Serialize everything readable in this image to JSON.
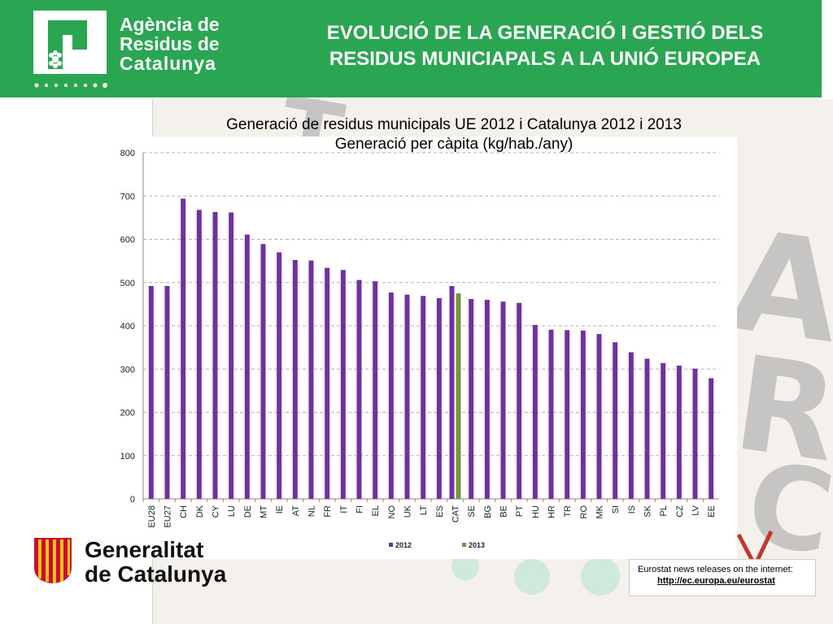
{
  "header": {
    "org_line1": "Agència de",
    "org_line2": "Residus de",
    "org_line3": "Catalunya",
    "title_line1": "EVOLUCIÓ DE LA GENERACIÓ I GESTIÓ DELS",
    "title_line2": "RESIDUS MUNICIAPALS A LA UNIÓ EUROPEA"
  },
  "footer": {
    "gencat_line1": "Generalitat",
    "gencat_line2": "de Catalunya",
    "eurostat_line1": "Eurostat news releases on the internet:",
    "eurostat_url": "http://ec.europa.eu/eurostat"
  },
  "colors": {
    "header_green": "#2aa552",
    "bar_2012": "#7030a0",
    "bar_2013": "#77933c",
    "grid": "#b3b3b3"
  },
  "chart_data": {
    "type": "bar",
    "title": "Generació de residus municipals UE 2012 i Catalunya 2012 i 2013",
    "subtitle": "Generació per càpita (kg/hab./any)",
    "xlabel": "",
    "ylabel": "",
    "ylim": [
      0,
      800
    ],
    "yticks": [
      0,
      100,
      200,
      300,
      400,
      500,
      600,
      700,
      800
    ],
    "grid": true,
    "legend_position": "bottom",
    "categories": [
      "EU28",
      "EU27",
      "CH",
      "DK",
      "CY",
      "LU",
      "DE",
      "MT",
      "IE",
      "AT",
      "NL",
      "FR",
      "IT",
      "FI",
      "EL",
      "NO",
      "UK",
      "LT",
      "ES",
      "CAT",
      "SE",
      "BG",
      "BE",
      "PT",
      "HU",
      "HR",
      "TR",
      "RO",
      "MK",
      "SI",
      "IS",
      "SK",
      "PL",
      "CZ",
      "LV",
      "EE"
    ],
    "series": [
      {
        "name": "2012",
        "color": "#7030a0",
        "values": [
          492,
          492,
          694,
          668,
          663,
          662,
          611,
          589,
          570,
          552,
          551,
          534,
          529,
          506,
          503,
          477,
          472,
          469,
          464,
          492,
          462,
          460,
          456,
          453,
          402,
          391,
          390,
          389,
          381,
          362,
          339,
          324,
          314,
          308,
          301,
          279
        ]
      },
      {
        "name": "2013",
        "color": "#77933c",
        "values": [
          null,
          null,
          null,
          null,
          null,
          null,
          null,
          null,
          null,
          null,
          null,
          null,
          null,
          null,
          null,
          null,
          null,
          null,
          null,
          475,
          null,
          null,
          null,
          null,
          null,
          null,
          null,
          null,
          null,
          null,
          null,
          null,
          null,
          null,
          null,
          null
        ]
      }
    ]
  }
}
